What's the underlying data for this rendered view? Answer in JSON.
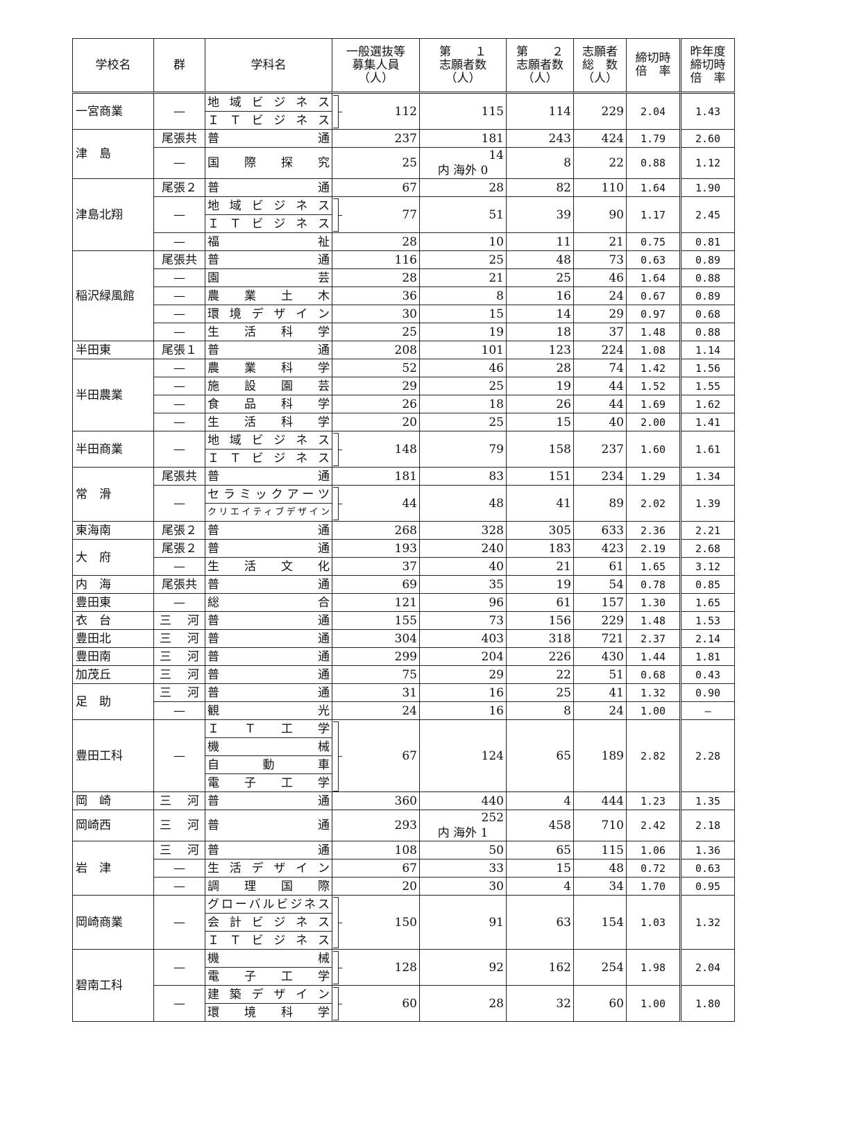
{
  "header": {
    "school": "学校名",
    "group": "群",
    "dept": "学科名",
    "recruit": [
      "一般選抜等",
      "募集人員",
      "（人）"
    ],
    "first": [
      "第　　１",
      "志願者数",
      "（人）"
    ],
    "second": [
      "第　　２",
      "志願者数",
      "（人）"
    ],
    "total": [
      "志願者",
      "総　数",
      "（人）"
    ],
    "ratio": [
      "締切時",
      "倍　率"
    ],
    "last_year": [
      "昨年度",
      "締切時",
      "倍　率"
    ]
  },
  "schools": [
    {
      "name": "一宮商業",
      "groups": [
        {
          "gun": "—",
          "depts": [
            "地域ビジネス",
            "ＩＴビジネス"
          ],
          "v": [
            "112",
            "115",
            "114",
            "229",
            "2.04",
            "1.43"
          ]
        }
      ]
    },
    {
      "name": "津　島",
      "groups": [
        {
          "gun": "尾張共",
          "depts": [
            "普通"
          ],
          "v": [
            "237",
            "181",
            "243",
            "424",
            "1.79",
            "2.60"
          ]
        },
        {
          "gun": "—",
          "depts": [
            "国際探究"
          ],
          "tall": true,
          "note": "内 海外 0",
          "v": [
            "25",
            "14",
            "8",
            "22",
            "0.88",
            "1.12"
          ]
        }
      ]
    },
    {
      "name": "津島北翔",
      "groups": [
        {
          "gun": "尾張２",
          "depts": [
            "普通"
          ],
          "v": [
            "67",
            "28",
            "82",
            "110",
            "1.64",
            "1.90"
          ]
        },
        {
          "gun": "—",
          "depts": [
            "地域ビジネス",
            "ＩＴビジネス"
          ],
          "v": [
            "77",
            "51",
            "39",
            "90",
            "1.17",
            "2.45"
          ]
        },
        {
          "gun": "—",
          "depts": [
            "福祉"
          ],
          "v": [
            "28",
            "10",
            "11",
            "21",
            "0.75",
            "0.81"
          ]
        }
      ]
    },
    {
      "name": "稲沢緑風館",
      "groups": [
        {
          "gun": "尾張共",
          "depts": [
            "普通"
          ],
          "v": [
            "116",
            "25",
            "48",
            "73",
            "0.63",
            "0.89"
          ]
        },
        {
          "gun": "—",
          "depts": [
            "園芸"
          ],
          "v": [
            "28",
            "21",
            "25",
            "46",
            "1.64",
            "0.88"
          ]
        },
        {
          "gun": "—",
          "depts": [
            "農業土木"
          ],
          "v": [
            "36",
            "8",
            "16",
            "24",
            "0.67",
            "0.89"
          ]
        },
        {
          "gun": "—",
          "depts": [
            "環境デザイン"
          ],
          "v": [
            "30",
            "15",
            "14",
            "29",
            "0.97",
            "0.68"
          ]
        },
        {
          "gun": "—",
          "depts": [
            "生活科学"
          ],
          "v": [
            "25",
            "19",
            "18",
            "37",
            "1.48",
            "0.88"
          ]
        }
      ]
    },
    {
      "name": "半田東",
      "groups": [
        {
          "gun": "尾張１",
          "depts": [
            "普通"
          ],
          "v": [
            "208",
            "101",
            "123",
            "224",
            "1.08",
            "1.14"
          ]
        }
      ]
    },
    {
      "name": "半田農業",
      "groups": [
        {
          "gun": "—",
          "depts": [
            "農業科学"
          ],
          "v": [
            "52",
            "46",
            "28",
            "74",
            "1.42",
            "1.56"
          ]
        },
        {
          "gun": "—",
          "depts": [
            "施設園芸"
          ],
          "v": [
            "29",
            "25",
            "19",
            "44",
            "1.52",
            "1.55"
          ]
        },
        {
          "gun": "—",
          "depts": [
            "食品科学"
          ],
          "v": [
            "26",
            "18",
            "26",
            "44",
            "1.69",
            "1.62"
          ]
        },
        {
          "gun": "—",
          "depts": [
            "生活科学"
          ],
          "v": [
            "20",
            "25",
            "15",
            "40",
            "2.00",
            "1.41"
          ]
        }
      ]
    },
    {
      "name": "半田商業",
      "groups": [
        {
          "gun": "—",
          "depts": [
            "地域ビジネス",
            "ＩＴビジネス"
          ],
          "v": [
            "148",
            "79",
            "158",
            "237",
            "1.60",
            "1.61"
          ]
        }
      ]
    },
    {
      "name": "常　滑",
      "groups": [
        {
          "gun": "尾張共",
          "depts": [
            "普通"
          ],
          "v": [
            "181",
            "83",
            "151",
            "234",
            "1.29",
            "1.34"
          ]
        },
        {
          "gun": "—",
          "depts": [
            "セラミックアーツ",
            "クリエイティブデザイン"
          ],
          "v": [
            "44",
            "48",
            "41",
            "89",
            "2.02",
            "1.39"
          ]
        }
      ]
    },
    {
      "name": "東海南",
      "groups": [
        {
          "gun": "尾張２",
          "depts": [
            "普通"
          ],
          "v": [
            "268",
            "328",
            "305",
            "633",
            "2.36",
            "2.21"
          ]
        }
      ]
    },
    {
      "name": "大　府",
      "groups": [
        {
          "gun": "尾張２",
          "depts": [
            "普通"
          ],
          "v": [
            "193",
            "240",
            "183",
            "423",
            "2.19",
            "2.68"
          ]
        },
        {
          "gun": "—",
          "depts": [
            "生活文化"
          ],
          "v": [
            "37",
            "40",
            "21",
            "61",
            "1.65",
            "3.12"
          ]
        }
      ]
    },
    {
      "name": "内　海",
      "groups": [
        {
          "gun": "尾張共",
          "depts": [
            "普通"
          ],
          "v": [
            "69",
            "35",
            "19",
            "54",
            "0.78",
            "0.85"
          ]
        }
      ]
    },
    {
      "name": "豊田東",
      "groups": [
        {
          "gun": "—",
          "depts": [
            "総合"
          ],
          "v": [
            "121",
            "96",
            "61",
            "157",
            "1.30",
            "1.65"
          ]
        }
      ]
    },
    {
      "name": "衣　台",
      "groups": [
        {
          "gun": "三河",
          "depts": [
            "普通"
          ],
          "v": [
            "155",
            "73",
            "156",
            "229",
            "1.48",
            "1.53"
          ]
        }
      ]
    },
    {
      "name": "豊田北",
      "groups": [
        {
          "gun": "三河",
          "depts": [
            "普通"
          ],
          "v": [
            "304",
            "403",
            "318",
            "721",
            "2.37",
            "2.14"
          ]
        }
      ]
    },
    {
      "name": "豊田南",
      "groups": [
        {
          "gun": "三河",
          "depts": [
            "普通"
          ],
          "v": [
            "299",
            "204",
            "226",
            "430",
            "1.44",
            "1.81"
          ]
        }
      ]
    },
    {
      "name": "加茂丘",
      "groups": [
        {
          "gun": "三河",
          "depts": [
            "普通"
          ],
          "v": [
            "75",
            "29",
            "22",
            "51",
            "0.68",
            "0.43"
          ]
        }
      ]
    },
    {
      "name": "足　助",
      "groups": [
        {
          "gun": "三河",
          "depts": [
            "普通"
          ],
          "v": [
            "31",
            "16",
            "25",
            "41",
            "1.32",
            "0.90"
          ]
        },
        {
          "gun": "—",
          "depts": [
            "観光"
          ],
          "v": [
            "24",
            "16",
            "8",
            "24",
            "1.00",
            "—"
          ]
        }
      ]
    },
    {
      "name": "豊田工科",
      "groups": [
        {
          "gun": "—",
          "depts": [
            "ＩＴ工学",
            "機械",
            "自動車",
            "電子工学"
          ],
          "v": [
            "67",
            "124",
            "65",
            "189",
            "2.82",
            "2.28"
          ]
        }
      ]
    },
    {
      "name": "岡　崎",
      "groups": [
        {
          "gun": "三河",
          "depts": [
            "普通"
          ],
          "v": [
            "360",
            "440",
            "4",
            "444",
            "1.23",
            "1.35"
          ]
        }
      ]
    },
    {
      "name": "岡崎西",
      "groups": [
        {
          "gun": "三河",
          "depts": [
            "普通"
          ],
          "tall": true,
          "note": "内 海外 1",
          "v": [
            "293",
            "252",
            "458",
            "710",
            "2.42",
            "2.18"
          ]
        }
      ]
    },
    {
      "name": "岩　津",
      "groups": [
        {
          "gun": "三河",
          "depts": [
            "普通"
          ],
          "v": [
            "108",
            "50",
            "65",
            "115",
            "1.06",
            "1.36"
          ]
        },
        {
          "gun": "—",
          "depts": [
            "生活デザイン"
          ],
          "v": [
            "67",
            "33",
            "15",
            "48",
            "0.72",
            "0.63"
          ]
        },
        {
          "gun": "—",
          "depts": [
            "調理国際"
          ],
          "v": [
            "20",
            "30",
            "4",
            "34",
            "1.70",
            "0.95"
          ]
        }
      ]
    },
    {
      "name": "岡崎商業",
      "groups": [
        {
          "gun": "—",
          "depts": [
            "グローバルビジネス",
            "会計ビジネス",
            "ＩＴビジネス"
          ],
          "v": [
            "150",
            "91",
            "63",
            "154",
            "1.03",
            "1.32"
          ]
        }
      ]
    },
    {
      "name": "碧南工科",
      "groups": [
        {
          "gun": "—",
          "depts": [
            "機械",
            "電子工学"
          ],
          "v": [
            "128",
            "92",
            "162",
            "254",
            "1.98",
            "2.04"
          ]
        },
        {
          "gun": "—",
          "depts": [
            "建築デザイン",
            "環境科学"
          ],
          "v": [
            "60",
            "28",
            "32",
            "60",
            "1.00",
            "1.80"
          ]
        }
      ]
    }
  ]
}
